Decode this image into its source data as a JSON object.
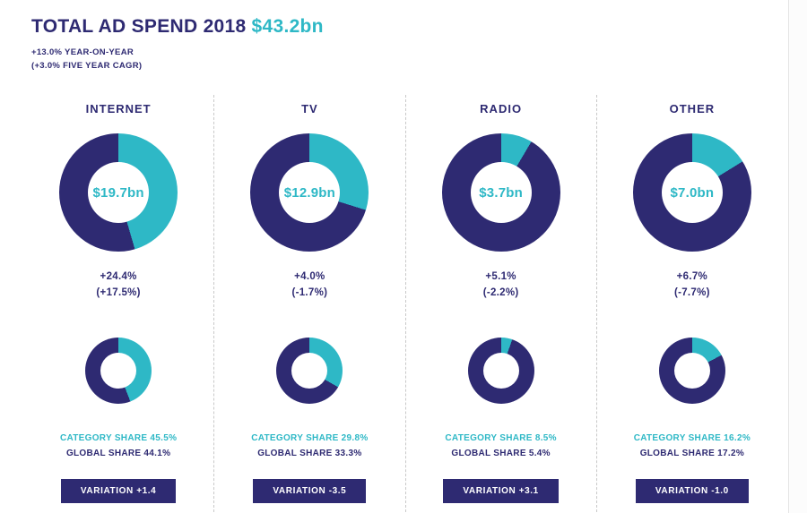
{
  "header": {
    "title": "TOTAL AD SPEND 2018",
    "total": "$43.2bn",
    "yoy": "+13.0% YEAR-ON-YEAR",
    "cagr": "(+3.0% FIVE YEAR CAGR)"
  },
  "colors": {
    "navy": "#2e2a72",
    "teal": "#2eb8c6"
  },
  "chart_data": {
    "type": "pie",
    "title": "TOTAL AD SPEND 2018 $43.2bn",
    "subtitle": "+13.0% YEAR-ON-YEAR (+3.0% FIVE YEAR CAGR)",
    "total_bn": 43.2,
    "categories": [
      "INTERNET",
      "TV",
      "RADIO",
      "OTHER"
    ],
    "series": [
      {
        "name": "Ad spend 2018 ($bn)",
        "values": [
          19.7,
          12.9,
          3.7,
          7.0
        ]
      },
      {
        "name": "Year-on-year growth (%)",
        "values": [
          24.4,
          4.0,
          5.1,
          6.7
        ]
      },
      {
        "name": "Five year CAGR (%)",
        "values": [
          17.5,
          -1.7,
          -2.2,
          -7.7
        ]
      },
      {
        "name": "Category share (%)",
        "values": [
          45.5,
          29.8,
          8.5,
          16.2
        ]
      },
      {
        "name": "Global share (%)",
        "values": [
          44.1,
          33.3,
          5.4,
          17.2
        ]
      },
      {
        "name": "Variation",
        "values": [
          1.4,
          -3.5,
          3.1,
          -1.0
        ]
      }
    ],
    "legend_position": "none",
    "grid": false
  },
  "columns": [
    {
      "label": "INTERNET",
      "value": "$19.7bn",
      "growth": "+24.4%",
      "cagr": "(+17.5%)",
      "category_share_pct": 45.5,
      "global_share_pct": 44.1,
      "category_share": "CATEGORY SHARE 45.5%",
      "global_share": "GLOBAL SHARE 44.1%",
      "variation": "VARIATION +1.4"
    },
    {
      "label": "TV",
      "value": "$12.9bn",
      "growth": "+4.0%",
      "cagr": "(-1.7%)",
      "category_share_pct": 29.8,
      "global_share_pct": 33.3,
      "category_share": "CATEGORY SHARE 29.8%",
      "global_share": "GLOBAL SHARE 33.3%",
      "variation": "VARIATION -3.5"
    },
    {
      "label": "RADIO",
      "value": "$3.7bn",
      "growth": "+5.1%",
      "cagr": "(-2.2%)",
      "category_share_pct": 8.5,
      "global_share_pct": 5.4,
      "category_share": "CATEGORY SHARE 8.5%",
      "global_share": "GLOBAL SHARE 5.4%",
      "variation": "VARIATION +3.1"
    },
    {
      "label": "OTHER",
      "value": "$7.0bn",
      "growth": "+6.7%",
      "cagr": "(-7.7%)",
      "category_share_pct": 16.2,
      "global_share_pct": 17.2,
      "category_share": "CATEGORY SHARE 16.2%",
      "global_share": "GLOBAL SHARE 17.2%",
      "variation": "VARIATION -1.0"
    }
  ]
}
